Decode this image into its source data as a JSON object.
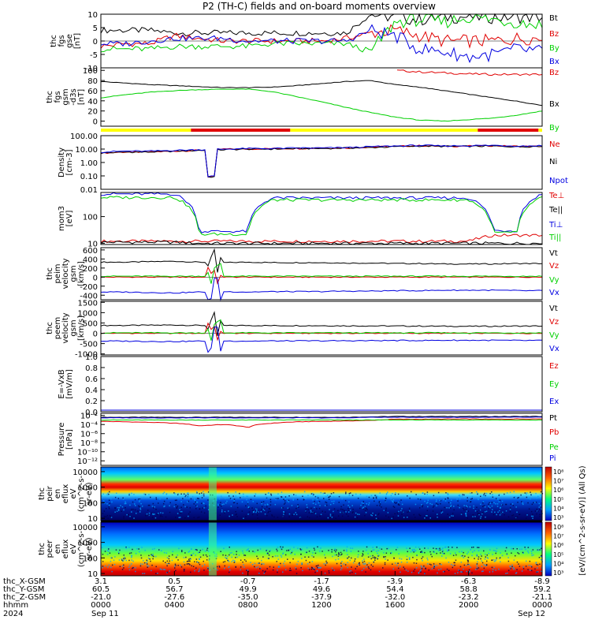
{
  "title": "P2 (TH-C) fields and on-board moments overview",
  "colors": {
    "black": "#000000",
    "red": "#e00000",
    "green": "#00d000",
    "blue": "#0000e0",
    "yellow": "#ffff00",
    "bar_red": "#e00000"
  },
  "chart_data": [
    {
      "type": "line",
      "id": "fgs_gse",
      "ylabel": [
        "thc",
        "fgs",
        "gse",
        "[nT]"
      ],
      "ylim": [
        -10,
        10
      ],
      "yticks": [
        10,
        5,
        0,
        -5,
        -10
      ],
      "series": [
        {
          "name": "Bt",
          "color": "black",
          "values": [
            4,
            4,
            4,
            3,
            3,
            3,
            3,
            3,
            3,
            3,
            3,
            10,
            9,
            8,
            9,
            9,
            9,
            9,
            9
          ]
        },
        {
          "name": "Bz",
          "color": "red",
          "values": [
            -2,
            -1,
            -1,
            2,
            1,
            0,
            0,
            0,
            0,
            0,
            1,
            3,
            4,
            2,
            0,
            0,
            0,
            1,
            1
          ]
        },
        {
          "name": "By",
          "color": "green",
          "values": [
            -3,
            -3,
            -3,
            -2,
            -2,
            -2,
            -2,
            -1,
            -1,
            -1,
            -1,
            -4,
            7,
            8,
            7,
            9,
            8,
            7,
            6
          ]
        },
        {
          "name": "Bx",
          "color": "blue",
          "values": [
            -1,
            -1,
            0,
            1,
            1,
            1,
            0,
            0,
            0,
            0,
            0,
            4,
            2,
            -3,
            -4,
            -6,
            -5,
            -3,
            -4
          ]
        }
      ]
    },
    {
      "type": "line",
      "id": "fgs_gsm",
      "ylabel": [
        "thc",
        "fgs",
        "gsm",
        "-d3s",
        "[nT]"
      ],
      "ylim": [
        -10,
        105
      ],
      "yticks": [
        100,
        80,
        60,
        40,
        20,
        0
      ],
      "series": [
        {
          "name": "Bz",
          "color": "red",
          "values": [
            null,
            null,
            null,
            null,
            null,
            null,
            null,
            null,
            null,
            null,
            null,
            null,
            100,
            97,
            95,
            93,
            92,
            92,
            92
          ]
        },
        {
          "name": "Bx",
          "color": "black",
          "values": [
            78,
            75,
            72,
            70,
            68,
            66,
            66,
            67,
            70,
            74,
            78,
            80,
            72,
            67,
            60,
            53,
            46,
            39,
            31
          ]
        },
        {
          "name": "By",
          "color": "green",
          "values": [
            46,
            52,
            57,
            60,
            62,
            63,
            63,
            58,
            48,
            38,
            27,
            17,
            8,
            2,
            0,
            3,
            6,
            12,
            20
          ]
        }
      ]
    },
    {
      "type": "line",
      "id": "density",
      "scale": "log",
      "ylabel": [
        "Density",
        "[cm-3]"
      ],
      "ylim": [
        0.01,
        100
      ],
      "yticks": [
        "100.00",
        "10.00",
        "1.00",
        "0.10",
        "0.01"
      ],
      "series": [
        {
          "name": "Ne",
          "color": "red",
          "values": [
            5,
            6,
            6,
            7,
            8,
            10,
            10,
            11,
            11,
            12,
            12,
            14,
            16,
            18,
            16,
            17,
            18,
            16,
            16
          ]
        },
        {
          "name": "Ni",
          "color": "black",
          "values": [
            5,
            6,
            6,
            7,
            8,
            9,
            10,
            10,
            11,
            11,
            12,
            13,
            15,
            17,
            16,
            16,
            17,
            15,
            16
          ]
        },
        {
          "name": "Npot",
          "color": "blue",
          "values": [
            6,
            7,
            7,
            8,
            9,
            10,
            11,
            11,
            12,
            12,
            13,
            15,
            17,
            19,
            17,
            18,
            19,
            17,
            18
          ]
        }
      ]
    },
    {
      "type": "line",
      "id": "temperature",
      "scale": "log",
      "ylabel": [
        "mom3",
        "[eV]"
      ],
      "ylim": [
        9,
        800
      ],
      "yticks": [
        "100",
        "10"
      ],
      "series": [
        {
          "name": "Te⊥",
          "color": "red",
          "values": [
            12,
            12,
            12,
            12,
            12,
            12,
            12,
            12,
            12,
            12,
            12,
            12,
            12,
            12,
            12,
            12,
            20,
            20,
            20
          ]
        },
        {
          "name": "Te||",
          "color": "black",
          "values": [
            11,
            11,
            11,
            11,
            10,
            10,
            10,
            10,
            10,
            10,
            10,
            10,
            10,
            10,
            10,
            10,
            10,
            10,
            10
          ]
        },
        {
          "name": "Ti⊥",
          "color": "blue",
          "values": [
            700,
            700,
            700,
            700,
            28,
            28,
            28,
            500,
            500,
            500,
            500,
            500,
            500,
            500,
            500,
            500,
            30,
            30,
            700
          ]
        },
        {
          "name": "Ti||",
          "color": "green",
          "values": [
            520,
            520,
            520,
            520,
            22,
            22,
            22,
            420,
            420,
            420,
            420,
            420,
            420,
            420,
            420,
            420,
            25,
            25,
            520
          ]
        }
      ]
    },
    {
      "type": "line",
      "id": "peim_velocity",
      "ylabel": [
        "thc",
        "peim",
        "velocity",
        "gsm",
        "[km/s]"
      ],
      "ylim": [
        -500,
        650
      ],
      "yticks": [
        "600",
        "400",
        "200",
        "0",
        "-200",
        "-400"
      ],
      "series": [
        {
          "name": "Vt",
          "color": "black",
          "values": [
            330,
            330,
            340,
            350,
            330,
            320,
            330,
            320,
            320,
            320,
            310,
            310,
            300,
            300,
            290,
            290,
            290,
            300,
            300
          ]
        },
        {
          "name": "Vz",
          "color": "red",
          "values": [
            0,
            0,
            0,
            0,
            0,
            0,
            0,
            0,
            0,
            0,
            0,
            0,
            0,
            0,
            0,
            0,
            0,
            0,
            0
          ]
        },
        {
          "name": "Vy",
          "color": "green",
          "values": [
            20,
            20,
            20,
            20,
            20,
            20,
            20,
            20,
            20,
            20,
            20,
            20,
            20,
            20,
            20,
            20,
            20,
            20,
            20
          ]
        },
        {
          "name": "Vx",
          "color": "blue",
          "values": [
            -330,
            -330,
            -340,
            -350,
            -330,
            -320,
            -330,
            -320,
            -320,
            -320,
            -310,
            -310,
            -300,
            -300,
            -290,
            -290,
            -290,
            -300,
            -300
          ]
        }
      ]
    },
    {
      "type": "line",
      "id": "peem_velocity",
      "ylabel": [
        "thc",
        "peem",
        "velocity",
        "gsm",
        "[km/s]"
      ],
      "ylim": [
        -1050,
        1550
      ],
      "yticks": [
        "1500",
        "1000",
        "500",
        "0",
        "-500",
        "-1000"
      ],
      "series": [
        {
          "name": "Vt",
          "color": "black",
          "values": [
            380,
            380,
            390,
            400,
            380,
            370,
            380,
            370,
            370,
            370,
            360,
            360,
            350,
            350,
            340,
            340,
            340,
            350,
            350
          ]
        },
        {
          "name": "Vz",
          "color": "red",
          "values": [
            0,
            0,
            0,
            0,
            0,
            0,
            0,
            0,
            0,
            0,
            0,
            0,
            0,
            0,
            0,
            0,
            0,
            0,
            0
          ]
        },
        {
          "name": "Vy",
          "color": "green",
          "values": [
            20,
            20,
            20,
            20,
            20,
            20,
            20,
            20,
            20,
            20,
            20,
            20,
            20,
            20,
            20,
            20,
            20,
            20,
            20
          ]
        },
        {
          "name": "Vx",
          "color": "blue",
          "values": [
            -380,
            -380,
            -390,
            -400,
            -380,
            -370,
            -380,
            -370,
            -370,
            -370,
            -360,
            -360,
            -350,
            -350,
            -340,
            -340,
            -340,
            -350,
            -350
          ]
        }
      ]
    },
    {
      "type": "line",
      "id": "efield",
      "ylabel": [
        "E=-VxB",
        "[mV/m]"
      ],
      "ylim": [
        0,
        1
      ],
      "yticks": [
        "1.0",
        "0.8",
        "0.6",
        "0.4",
        "0.2",
        "0.0"
      ],
      "series": [
        {
          "name": "Ez",
          "color": "red",
          "values": []
        },
        {
          "name": "Ey",
          "color": "green",
          "values": []
        },
        {
          "name": "Ex",
          "color": "blue",
          "values": []
        }
      ]
    },
    {
      "type": "line",
      "id": "pressure",
      "scale": "log",
      "ylabel": [
        "Pressure",
        "[nPa]"
      ],
      "ylim": [
        1e-13,
        0.03
      ],
      "yticks": [
        "10⁻²",
        "10⁻⁴",
        "10⁻⁶",
        "10⁻⁸",
        "10⁻¹⁰",
        "10⁻¹²"
      ],
      "series": [
        {
          "name": "Pt",
          "color": "black",
          "values": [
            0.004,
            0.004,
            0.004,
            0.004,
            0.004,
            0.004,
            0.004,
            0.004,
            0.004,
            0.004,
            0.004,
            0.005,
            0.006,
            0.006,
            0.006,
            0.006,
            0.006,
            0.006,
            0.006
          ]
        },
        {
          "name": "Pb",
          "color": "red",
          "values": [
            0.0005,
            0.0004,
            0.0003,
            0.0002,
            5e-05,
            0.0001,
            2e-05,
            0.0002,
            0.0004,
            0.0005,
            0.0006,
            0.0008,
            0.0015,
            0.0015,
            0.0016,
            0.0017,
            0.0015,
            0.0017,
            0.0018
          ]
        },
        {
          "name": "Pe",
          "color": "green",
          "values": [
            0.001,
            0.001,
            0.001,
            0.001,
            0.001,
            0.001,
            0.001,
            0.001,
            0.001,
            0.001,
            0.001,
            0.001,
            0.001,
            0.001,
            0.001,
            0.001,
            0.001,
            0.001,
            0.001
          ]
        },
        {
          "name": "Pi",
          "color": "blue",
          "values": [
            0.003,
            0.003,
            0.003,
            0.003,
            0.003,
            0.003,
            0.003,
            0.003,
            0.003,
            0.003,
            0.003,
            0.004,
            0.004,
            0.004,
            0.004,
            0.004,
            0.004,
            0.004,
            0.004
          ]
        }
      ]
    },
    {
      "type": "heatmap",
      "id": "peir_spectrogram",
      "ylabel": [
        "thc",
        "peir",
        "en",
        "eflux",
        "eV",
        "(cm^2-s-",
        "sr-eV)"
      ],
      "yticks": [
        "10000",
        "1000",
        "100",
        "10"
      ],
      "colorbar": {
        "ticks": [
          "10⁸",
          "10⁷",
          "10⁶",
          "10⁵",
          "10⁴",
          "10³"
        ],
        "label": "[eV/(cm^2-s-sr-eV)] (All Qs)"
      }
    },
    {
      "type": "heatmap",
      "id": "peer_spectrogram",
      "ylabel": [
        "thc",
        "peer",
        "en",
        "eflux",
        "eV",
        "(cm^2-s-",
        "sr-eV)"
      ],
      "yticks": [
        "10000",
        "1000",
        "100",
        "10"
      ],
      "colorbar": {
        "ticks": [
          "10⁸",
          "10⁷",
          "10⁶",
          "10⁵",
          "10⁴",
          "10³"
        ]
      }
    }
  ],
  "mode_bar": [
    {
      "color": "yellow",
      "from": 0,
      "to": 4.9
    },
    {
      "color": "bar_red",
      "from": 4.9,
      "to": 10.3
    },
    {
      "color": "yellow",
      "from": 10.3,
      "to": 20.5
    },
    {
      "color": "bar_red",
      "from": 20.5,
      "to": 23.8
    },
    {
      "color": "yellow",
      "from": 23.8,
      "to": 24
    }
  ],
  "x_axis": {
    "row_labels": [
      "thc_X-GSM",
      "thc_Y-GSM",
      "thc_Z-GSM",
      "hhmm",
      "2024"
    ],
    "ticks": [
      {
        "x": "3.1",
        "y": "60.5",
        "z": "-21.0",
        "hhmm": "0000",
        "date": "Sep 11"
      },
      {
        "x": "0.5",
        "y": "56.7",
        "z": "-27.6",
        "hhmm": "0400",
        "date": ""
      },
      {
        "x": "-0.7",
        "y": "49.9",
        "z": "-35.0",
        "hhmm": "0800",
        "date": ""
      },
      {
        "x": "-1.7",
        "y": "49.6",
        "z": "-37.9",
        "hhmm": "1200",
        "date": ""
      },
      {
        "x": "-3.9",
        "y": "54.4",
        "z": "-32.0",
        "hhmm": "1600",
        "date": ""
      },
      {
        "x": "-6.3",
        "y": "58.8",
        "z": "-23.2",
        "hhmm": "2000",
        "date": ""
      },
      {
        "x": "-8.9",
        "y": "59.2",
        "z": "-21.1",
        "hhmm": "0000",
        "date": "Sep 12"
      }
    ]
  }
}
